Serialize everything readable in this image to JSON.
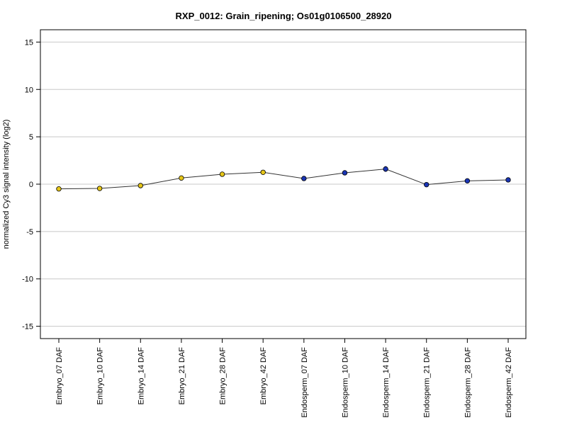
{
  "chart_data": {
    "type": "line",
    "title": "RXP_0012: Grain_ripening; Os01g0106500_28920",
    "ylabel": "normalized Cy3 signal intensity (log2)",
    "xlabel": "",
    "ylim": [
      -16.3,
      16.3
    ],
    "yticks": [
      15,
      10,
      5,
      0,
      -5,
      -10,
      -15
    ],
    "ytick_labels": [
      "15",
      "10",
      "5",
      "0",
      "-5",
      "-10",
      "-15"
    ],
    "grid": "horizontal",
    "categories": [
      "Embryo_07 DAF",
      "Embryo_10 DAF",
      "Embryo_14 DAF",
      "Embryo_21 DAF",
      "Embryo_28 DAF",
      "Embryo_42 DAF",
      "Endosperm_07 DAF",
      "Endosperm_10 DAF",
      "Endosperm_14 DAF",
      "Endosperm_21 DAF",
      "Endosperm_28 DAF",
      "Endosperm_42 DAF"
    ],
    "values": [
      -0.5,
      -0.45,
      -0.15,
      0.65,
      1.05,
      1.25,
      0.6,
      1.2,
      1.6,
      -0.05,
      0.35,
      0.45
    ],
    "errors": [
      0.05,
      0.05,
      0.12,
      0.15,
      0.12,
      0.1,
      0.08,
      0.1,
      0.3,
      0.05,
      0.05,
      0.08
    ],
    "point_colors": [
      "#e6c619",
      "#e6c619",
      "#e6c619",
      "#e6c619",
      "#e6c619",
      "#e6c619",
      "#1a35b5",
      "#1a35b5",
      "#1a35b5",
      "#1a35b5",
      "#1a35b5",
      "#1a35b5"
    ],
    "line_color": "#333333"
  }
}
